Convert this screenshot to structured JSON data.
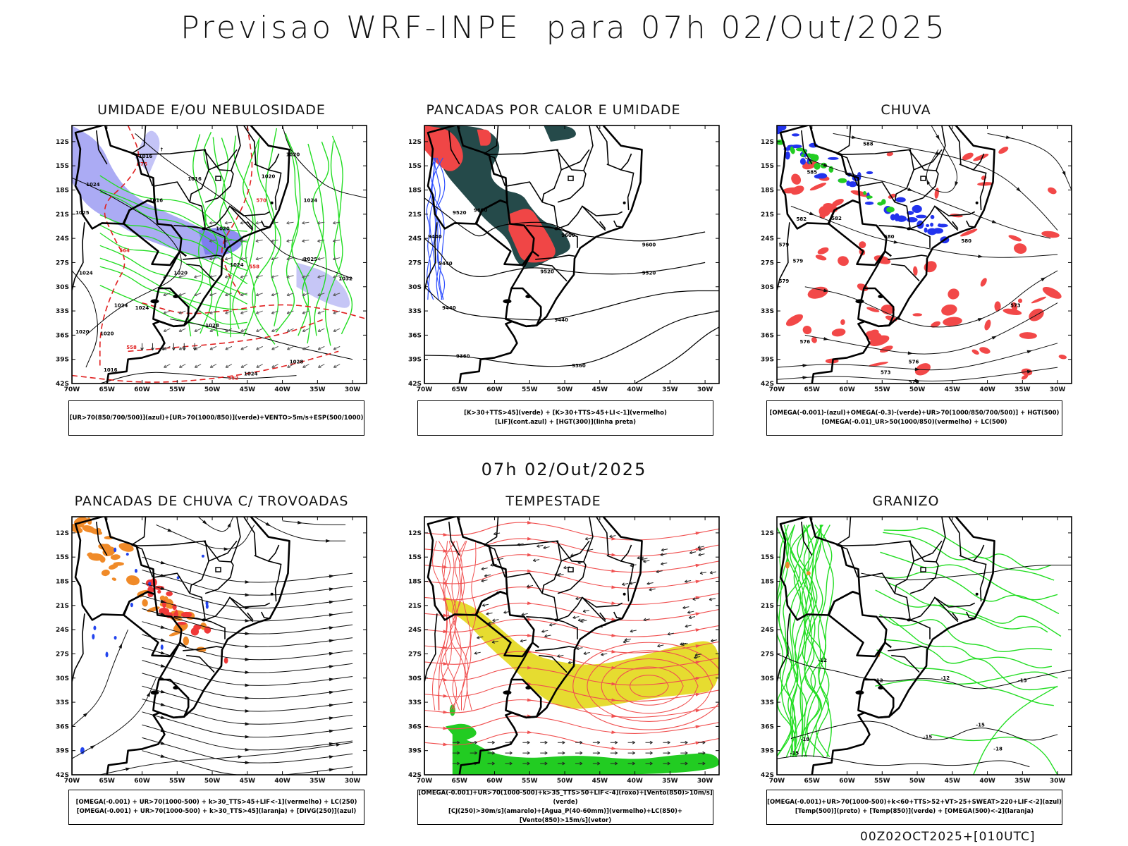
{
  "header": {
    "title": "Previsao WRF-INPE  para 07h 02/Out/2025",
    "center_time": "07h 02/Out/2025",
    "footer_stamp": "00Z02OCT2025+[010UTC]"
  },
  "axes": {
    "lon_labels": [
      "70W",
      "65W",
      "60W",
      "55W",
      "50W",
      "45W",
      "40W",
      "35W",
      "30W"
    ],
    "lat_labels": [
      "12S",
      "15S",
      "18S",
      "21S",
      "24S",
      "27S",
      "30S",
      "33S",
      "36S",
      "39S",
      "42S"
    ]
  },
  "panels": [
    {
      "title": "UMIDADE E/OU NEBULOSIDADE",
      "legend": [
        "[UR>70(850/700/500)](azul)+[UR>70(1000/850)](verde)+VENTO>5m/s+ESP(500/1000)"
      ],
      "contour_labels": [
        {
          "text": "1016",
          "lon": -59.5,
          "lat": -14.0,
          "color": "#000"
        },
        {
          "text": "1016",
          "lon": -52.5,
          "lat": -16.8,
          "color": "#000"
        },
        {
          "text": "1016",
          "lon": -58.0,
          "lat": -19.5,
          "color": "#000"
        },
        {
          "text": "1020",
          "lon": -38.5,
          "lat": -13.8,
          "color": "#000"
        },
        {
          "text": "1020",
          "lon": -42.0,
          "lat": -16.5,
          "color": "#000"
        },
        {
          "text": "1024",
          "lon": -36.0,
          "lat": -19.5,
          "color": "#000"
        },
        {
          "text": "1024",
          "lon": -67.0,
          "lat": -17.5,
          "color": "#000"
        },
        {
          "text": "1025",
          "lon": -68.5,
          "lat": -21.0,
          "color": "#000"
        },
        {
          "text": "1020",
          "lon": -48.5,
          "lat": -23.0,
          "color": "#000"
        },
        {
          "text": "1020",
          "lon": -54.5,
          "lat": -28.5,
          "color": "#000"
        },
        {
          "text": "1024",
          "lon": -46.5,
          "lat": -27.5,
          "color": "#000"
        },
        {
          "text": "1025",
          "lon": -36.0,
          "lat": -26.8,
          "color": "#000"
        },
        {
          "text": "1024",
          "lon": -68.0,
          "lat": -28.5,
          "color": "#000"
        },
        {
          "text": "1024",
          "lon": -63.0,
          "lat": -32.5,
          "color": "#000"
        },
        {
          "text": "1024",
          "lon": -60.0,
          "lat": -32.8,
          "color": "#000"
        },
        {
          "text": "1028",
          "lon": -50.0,
          "lat": -35.0,
          "color": "#000"
        },
        {
          "text": "1020",
          "lon": -65.0,
          "lat": -36.0,
          "color": "#000"
        },
        {
          "text": "1020",
          "lon": -68.5,
          "lat": -35.8,
          "color": "#000"
        },
        {
          "text": "1032",
          "lon": -31.0,
          "lat": -29.2,
          "color": "#000"
        },
        {
          "text": "1028",
          "lon": -38.0,
          "lat": -39.5,
          "color": "#000"
        },
        {
          "text": "1024",
          "lon": -44.5,
          "lat": -41.0,
          "color": "#000"
        },
        {
          "text": "1016",
          "lon": -64.5,
          "lat": -40.5,
          "color": "#000"
        },
        {
          "text": "576",
          "lon": -60.0,
          "lat": -15.0,
          "color": "#e02020"
        },
        {
          "text": "570",
          "lon": -43.0,
          "lat": -19.5,
          "color": "#e02020"
        },
        {
          "text": "564",
          "lon": -62.5,
          "lat": -25.7,
          "color": "#e02020"
        },
        {
          "text": "558",
          "lon": -44.0,
          "lat": -27.7,
          "color": "#e02020"
        },
        {
          "text": "558",
          "lon": -61.5,
          "lat": -37.7,
          "color": "#e02020"
        },
        {
          "text": "552",
          "lon": -47.0,
          "lat": -41.5,
          "color": "#e02020"
        }
      ]
    },
    {
      "title": "PANCADAS POR CALOR E UMIDADE",
      "legend": [
        "[K>30+TTS>45](verde) + [K>30+TTS>45+LI<-1](vermelho)",
        "[LIF](cont.azul) + [HGT(300)](linha preta)"
      ],
      "contour_labels": [
        {
          "text": "9520",
          "lon": -65.0,
          "lat": -21.0,
          "color": "#000"
        },
        {
          "text": "9600",
          "lon": -62.0,
          "lat": -20.7,
          "color": "#000"
        },
        {
          "text": "9600",
          "lon": -49.5,
          "lat": -23.8,
          "color": "#000"
        },
        {
          "text": "9440",
          "lon": -68.5,
          "lat": -24.0,
          "color": "#000"
        },
        {
          "text": "9600",
          "lon": -38.0,
          "lat": -25.0,
          "color": "#000"
        },
        {
          "text": "9440",
          "lon": -67.0,
          "lat": -27.3,
          "color": "#000"
        },
        {
          "text": "9520",
          "lon": -52.5,
          "lat": -28.3,
          "color": "#000"
        },
        {
          "text": "9520",
          "lon": -38.0,
          "lat": -28.5,
          "color": "#000"
        },
        {
          "text": "9440",
          "lon": -66.5,
          "lat": -32.8,
          "color": "#000"
        },
        {
          "text": "9440",
          "lon": -50.5,
          "lat": -34.3,
          "color": "#000"
        },
        {
          "text": "9360",
          "lon": -64.5,
          "lat": -38.8,
          "color": "#000"
        },
        {
          "text": "9360",
          "lon": -48.0,
          "lat": -40.0,
          "color": "#000"
        }
      ]
    },
    {
      "title": "CHUVA",
      "legend": [
        "[OMEGA(-0.001)-(azul)+OMEGA(-0.3)-(verde)+UR>70(1000/850/700/500)] + HGT(500)",
        "[OMEGA(-0.01)_UR>50(1000/850)(vermelho) + LC(500)"
      ],
      "contour_labels": [
        {
          "text": "588",
          "lon": -57.0,
          "lat": -12.5,
          "color": "#000"
        },
        {
          "text": "585",
          "lon": -65.0,
          "lat": -16.0,
          "color": "#000"
        },
        {
          "text": "582",
          "lon": -66.5,
          "lat": -21.8,
          "color": "#000"
        },
        {
          "text": "582",
          "lon": -61.5,
          "lat": -21.7,
          "color": "#000"
        },
        {
          "text": "580",
          "lon": -54.0,
          "lat": -24.0,
          "color": "#000"
        },
        {
          "text": "579",
          "lon": -69.0,
          "lat": -25.0,
          "color": "#000"
        },
        {
          "text": "579",
          "lon": -67.0,
          "lat": -27.0,
          "color": "#000"
        },
        {
          "text": "579",
          "lon": -69.0,
          "lat": -29.5,
          "color": "#000"
        },
        {
          "text": "580",
          "lon": -43.0,
          "lat": -24.5,
          "color": "#000"
        },
        {
          "text": "576",
          "lon": -66.0,
          "lat": -37.0,
          "color": "#000"
        },
        {
          "text": "576",
          "lon": -50.5,
          "lat": -39.5,
          "color": "#000"
        },
        {
          "text": "573",
          "lon": -54.5,
          "lat": -40.8,
          "color": "#000"
        },
        {
          "text": "570",
          "lon": -50.5,
          "lat": -42.0,
          "color": "#000"
        },
        {
          "text": "573",
          "lon": -36.0,
          "lat": -32.5,
          "color": "#000"
        }
      ]
    },
    {
      "title": "PANCADAS DE CHUVA C/ TROVOADAS",
      "legend": [
        "[OMEGA(-0.001) + UR>70(1000-500) + k>30_TTS>45+LIF<-1](vermelho) + LC(250)",
        "[OMEGA(-0.001) + UR>70(1000-500) + k>30_TTS>45](laranja) + [DIVG(250)](azul)"
      ],
      "contour_labels": []
    },
    {
      "title": "TEMPESTADE",
      "legend": [
        "[OMEGA(-0.001)+UR>70(1000-500)+k>35_TTS>50+LIF<-4](roxo)+[Vento(850)>10m/s](verde)",
        "[CJ(250)>30m/s](amarelo)+[Agua_P(40-60mm)](vermelho)+LC(850)+[Vento(850)>15m/s](vetor)"
      ],
      "contour_labels": []
    },
    {
      "title": "GRANIZO",
      "legend": [
        "[OMEGA(-0.001)+UR>70(1000-500)+k<60+TTS>52+VT>25+SWEAT>220+LIF<-2](azul)",
        "[Temp(500)](preto) + [Temp(850)](verde) + [OMEGA(500)<-2](laranja)"
      ],
      "contour_labels": [
        {
          "text": "-12",
          "lon": -55.5,
          "lat": -30.5,
          "color": "#000"
        },
        {
          "text": "-12",
          "lon": -63.5,
          "lat": -28.0,
          "color": "#000"
        },
        {
          "text": "-12",
          "lon": -46.0,
          "lat": -30.2,
          "color": "#000"
        },
        {
          "text": "-15",
          "lon": -35.0,
          "lat": -30.5,
          "color": "#000"
        },
        {
          "text": "-15",
          "lon": -48.5,
          "lat": -37.5,
          "color": "#000"
        },
        {
          "text": "-15",
          "lon": -41.0,
          "lat": -36.0,
          "color": "#000"
        },
        {
          "text": "-18",
          "lon": -66.0,
          "lat": -37.8,
          "color": "#000"
        },
        {
          "text": "-15",
          "lon": -67.5,
          "lat": -39.5,
          "color": "#000"
        },
        {
          "text": "-18",
          "lon": -38.5,
          "lat": -39.0,
          "color": "#000"
        }
      ]
    }
  ]
}
